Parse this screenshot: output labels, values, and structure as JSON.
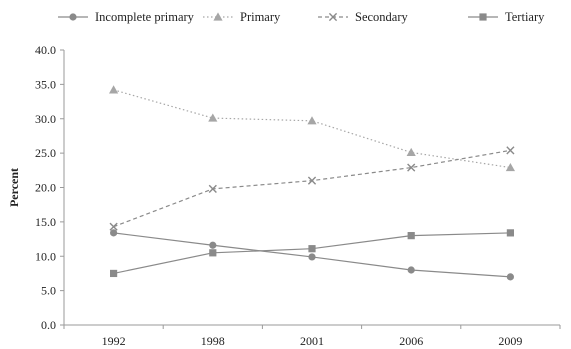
{
  "chart_data": {
    "type": "line",
    "title": "",
    "xlabel": "",
    "ylabel": "Percent",
    "categories": [
      "1992",
      "1998",
      "2001",
      "2006",
      "2009"
    ],
    "ylim": [
      0,
      40
    ],
    "yticks": [
      "0.0",
      "5.0",
      "10.0",
      "15.0",
      "20.0",
      "25.0",
      "30.0",
      "35.0",
      "40.0"
    ],
    "grid": false,
    "legend_position": "top",
    "series": [
      {
        "name": "Incomplete primary",
        "values": [
          13.4,
          11.6,
          9.9,
          8.0,
          7.0
        ],
        "color": "#8a8a8a",
        "line": "solid",
        "marker": "circle"
      },
      {
        "name": "Primary",
        "values": [
          34.2,
          30.1,
          29.7,
          25.1,
          22.9
        ],
        "color": "#a6a6a6",
        "line": "dotted",
        "marker": "triangle"
      },
      {
        "name": "Secondary",
        "values": [
          14.3,
          19.8,
          21.0,
          22.9,
          25.4
        ],
        "color": "#8a8a8a",
        "line": "dashed",
        "marker": "x"
      },
      {
        "name": "Tertiary",
        "values": [
          7.5,
          10.5,
          11.1,
          13.0,
          13.4
        ],
        "color": "#8a8a8a",
        "line": "solid",
        "marker": "square"
      }
    ]
  }
}
